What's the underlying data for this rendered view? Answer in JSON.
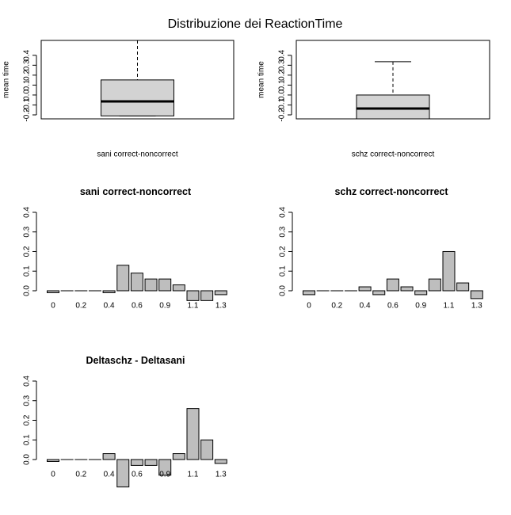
{
  "title": "Distribuzione dei ReactionTime",
  "chart_data": [
    {
      "type": "box",
      "ylabel": "mean time",
      "xlabel": "sani correct-noncorrect",
      "whisker_low": -0.21,
      "q1": -0.21,
      "median": -0.064,
      "q3": 0.152,
      "whisker_high": 0.55,
      "color": "#d3d3d3",
      "ylim": [
        -0.24,
        0.55
      ],
      "yticks": [
        -0.2,
        -0.1,
        {
          "value": 0,
          "label": "0.0"
        },
        0.1,
        0.2,
        0.3,
        0.4
      ]
    },
    {
      "type": "box",
      "ylabel": "mean time",
      "xlabel": "schz correct-noncorrect",
      "whisker_low": -0.24,
      "q1": -0.24,
      "median": -0.136,
      "q3": 0.0,
      "whisker_high": 0.336,
      "color": "#d3d3d3",
      "ylim": [
        -0.24,
        0.55
      ],
      "yticks": [
        -0.2,
        -0.1,
        {
          "value": 0,
          "label": "0.0"
        },
        0.1,
        0.2,
        0.3,
        0.4
      ]
    },
    {
      "type": "bar",
      "title": "sani correct-noncorrect",
      "categories": [
        "0",
        null,
        "0.2",
        null,
        "0.4",
        null,
        "0.6",
        null,
        "0.9",
        null,
        "1.1",
        null,
        "1.3"
      ],
      "values": [
        -0.01,
        0,
        0,
        0,
        -0.01,
        0.13,
        0.09,
        0.06,
        0.06,
        0.03,
        -0.05,
        -0.05,
        -0.02
      ],
      "color": "#bebebe",
      "ylim": [
        -0.15,
        0.45
      ],
      "yticks": [
        {
          "value": 0,
          "label": "0.0"
        },
        0.1,
        0.2,
        0.3,
        0.4
      ]
    },
    {
      "type": "bar",
      "title": "schz correct-noncorrect",
      "categories": [
        "0",
        null,
        "0.2",
        null,
        "0.4",
        null,
        "0.6",
        null,
        "0.9",
        null,
        "1.1",
        null,
        "1.3"
      ],
      "values": [
        -0.02,
        0,
        0,
        0,
        0.02,
        -0.02,
        0.06,
        0.02,
        -0.02,
        0.06,
        0.2,
        0.04,
        -0.04
      ],
      "color": "#bebebe",
      "ylim": [
        -0.15,
        0.45
      ],
      "yticks": [
        {
          "value": 0,
          "label": "0.0"
        },
        0.1,
        0.2,
        0.3,
        0.4
      ]
    },
    {
      "type": "bar",
      "title": "Deltaschz - Deltasani",
      "categories": [
        "0",
        null,
        "0.2",
        null,
        "0.4",
        null,
        "0.6",
        null,
        "0.9",
        null,
        "1.1",
        null,
        "1.3"
      ],
      "values": [
        -0.01,
        0,
        0,
        0,
        0.03,
        -0.14,
        -0.03,
        -0.03,
        -0.08,
        0.03,
        0.26,
        0.1,
        -0.02
      ],
      "color": "#bebebe",
      "ylim": [
        -0.15,
        0.45
      ],
      "yticks": [
        {
          "value": 0,
          "label": "0.0"
        },
        0.1,
        0.2,
        0.3,
        0.4
      ]
    }
  ]
}
